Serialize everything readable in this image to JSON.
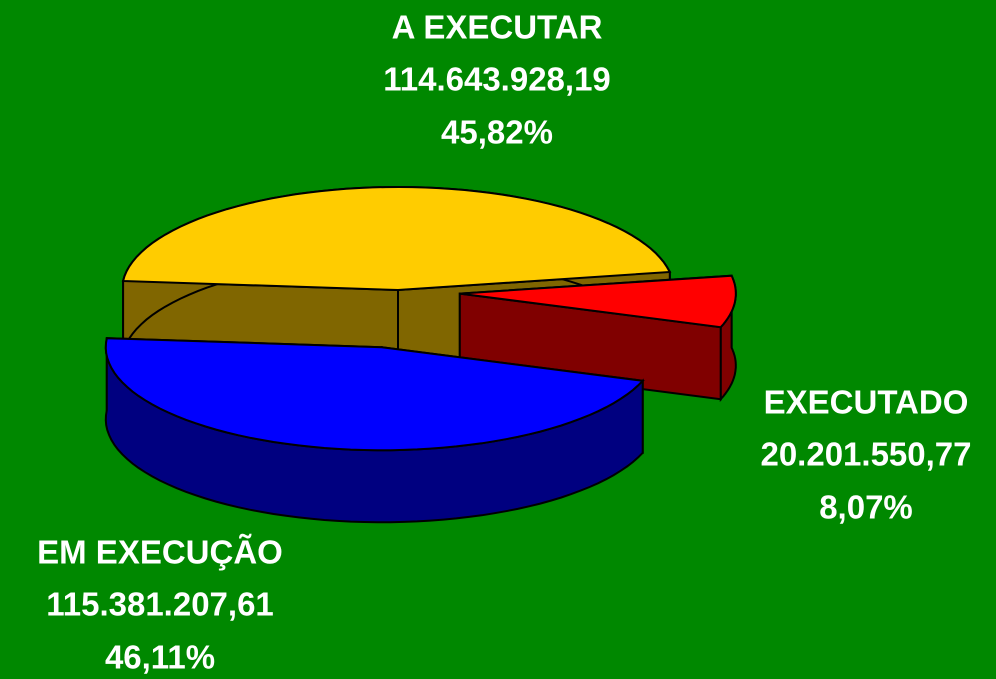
{
  "chart_data": {
    "type": "pie",
    "categories": [
      "A EXECUTAR",
      "EXECUTADO",
      "EM EXECUÇÃO"
    ],
    "values": [
      45.82,
      8.07,
      46.11
    ],
    "value_labels": [
      "45,82%",
      "8,07%",
      "46,11%"
    ],
    "amount_labels": [
      "114.643.928,19",
      "20.201.550,77",
      "115.381.207,61"
    ],
    "colors": [
      "#ffcc00",
      "#ff0000",
      "#0000ff"
    ],
    "side_colors": [
      "#806600",
      "#800000",
      "#000080"
    ]
  }
}
